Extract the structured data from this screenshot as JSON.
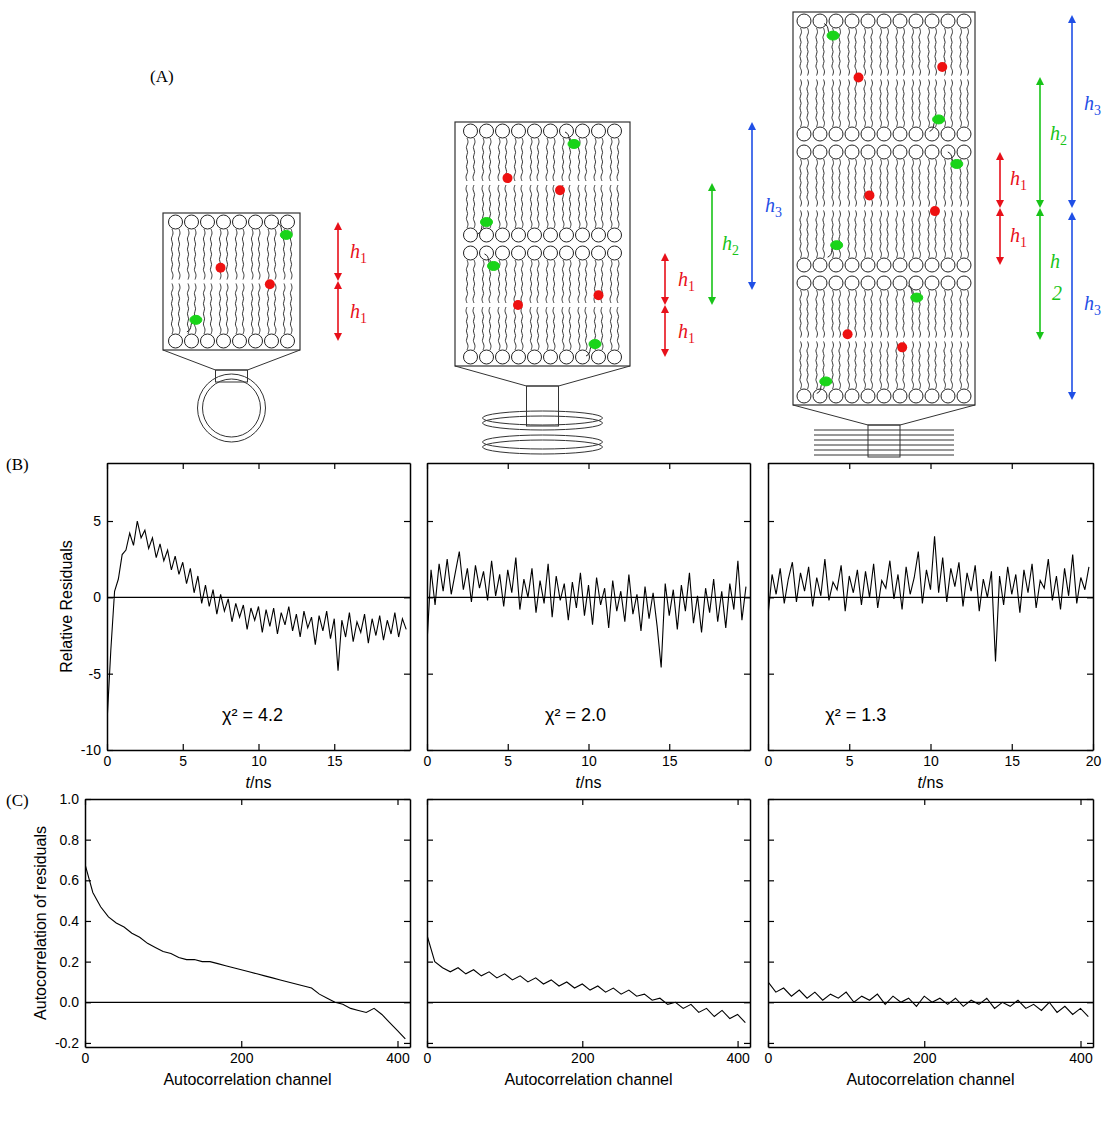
{
  "panel_labels": [
    "(A)",
    "(B)",
    "(C)"
  ],
  "diagram": {
    "stacks": [
      {
        "labels": [
          {
            "text": "h",
            "sub": "1",
            "color": "#e8101a"
          },
          {
            "text": "h",
            "sub": "1",
            "color": "#e8101a"
          }
        ]
      },
      {
        "labels": [
          {
            "text": "h",
            "sub": "1",
            "color": "#e8101a"
          },
          {
            "text": "h",
            "sub": "1",
            "color": "#e8101a"
          },
          {
            "text": "h",
            "sub": "2",
            "color": "#18c418"
          },
          {
            "text": "h",
            "sub": "3",
            "color": "#1f4fe6"
          }
        ]
      },
      {
        "labels": [
          {
            "text": "h",
            "sub": "3",
            "color": "#1f4fe6"
          },
          {
            "text": "h",
            "sub": "2",
            "color": "#18c418"
          },
          {
            "text": "h",
            "sub": "1",
            "color": "#e8101a"
          },
          {
            "text": "h",
            "sub": "1",
            "color": "#e8101a"
          },
          {
            "text": "h",
            "color": "#18c418"
          },
          {
            "text": "2",
            "color": "#18c418"
          },
          {
            "text": "h",
            "sub": "3",
            "color": "#1f4fe6"
          }
        ]
      }
    ]
  },
  "chart_data": [
    {
      "type": "line",
      "ylabel": "Relative Residuals",
      "xlabel": "t/ns",
      "annotation": "χ² = 4.2",
      "color": "#000000",
      "xlim": [
        0,
        20
      ],
      "ylim": [
        -10,
        8.8
      ],
      "xticks": [
        0,
        5,
        10,
        15
      ],
      "yticks": [
        -10,
        -5,
        0,
        5
      ],
      "x": [
        0,
        0.25,
        0.5,
        0.75,
        1,
        1.25,
        1.5,
        1.75,
        2,
        2.25,
        2.5,
        2.75,
        3,
        3.25,
        3.5,
        3.75,
        4,
        4.25,
        4.5,
        4.75,
        5,
        5.25,
        5.5,
        5.75,
        6,
        6.25,
        6.5,
        6.75,
        7,
        7.25,
        7.5,
        7.75,
        8,
        8.25,
        8.5,
        8.75,
        9,
        9.25,
        9.5,
        9.75,
        10,
        10.25,
        10.5,
        10.75,
        11,
        11.25,
        11.5,
        11.75,
        12,
        12.25,
        12.5,
        12.75,
        13,
        13.25,
        13.5,
        13.75,
        14,
        14.25,
        14.5,
        14.75,
        15,
        15.25,
        15.5,
        15.75,
        16,
        16.25,
        16.5,
        16.75,
        17,
        17.25,
        17.5,
        17.75,
        18,
        18.25,
        18.5,
        18.75,
        19,
        19.25,
        19.5,
        19.75
      ],
      "values": [
        -8.2,
        -3.5,
        0.4,
        1.2,
        2.8,
        3.1,
        4.2,
        3.4,
        5.0,
        3.9,
        4.4,
        3.2,
        3.9,
        2.6,
        3.5,
        2.4,
        3.1,
        1.8,
        2.7,
        1.5,
        2.3,
        0.9,
        1.9,
        0.3,
        1.4,
        -0.4,
        0.8,
        -0.6,
        0.5,
        -1.1,
        0.2,
        -0.9,
        -0.1,
        -1.6,
        -0.4,
        -1.3,
        -0.5,
        -2.1,
        -0.7,
        -1.5,
        -0.6,
        -2.3,
        -0.8,
        -1.9,
        -0.7,
        -2.4,
        -1.0,
        -1.8,
        -0.6,
        -2.2,
        -1.1,
        -2.6,
        -0.9,
        -2.0,
        -1.3,
        -3.1,
        -1.2,
        -2.2,
        -0.9,
        -2.7,
        -1.4,
        -4.8,
        -1.5,
        -2.6,
        -1.0,
        -2.9,
        -1.6,
        -2.3,
        -1.1,
        -3.0,
        -1.4,
        -2.5,
        -1.2,
        -2.8,
        -1.5,
        -2.4,
        -1.0,
        -2.6,
        -1.4,
        -2.1
      ]
    },
    {
      "type": "line",
      "xlabel": "t/ns",
      "annotation": "χ² = 2.0",
      "color": "#000000",
      "tick_labels": "x",
      "xlim": [
        0,
        20
      ],
      "ylim": [
        -10,
        8.8
      ],
      "xticks": [
        0,
        5,
        10,
        15
      ],
      "yticks": [
        -10,
        -5,
        0,
        5
      ],
      "x": [
        0,
        0.25,
        0.5,
        0.75,
        1,
        1.25,
        1.5,
        1.75,
        2,
        2.25,
        2.5,
        2.75,
        3,
        3.25,
        3.5,
        3.75,
        4,
        4.25,
        4.5,
        4.75,
        5,
        5.25,
        5.5,
        5.75,
        6,
        6.25,
        6.5,
        6.75,
        7,
        7.25,
        7.5,
        7.75,
        8,
        8.25,
        8.5,
        8.75,
        9,
        9.25,
        9.5,
        9.75,
        10,
        10.25,
        10.5,
        10.75,
        11,
        11.25,
        11.5,
        11.75,
        12,
        12.25,
        12.5,
        12.75,
        13,
        13.25,
        13.5,
        13.75,
        14,
        14.25,
        14.5,
        14.75,
        15,
        15.25,
        15.5,
        15.75,
        16,
        16.25,
        16.5,
        16.75,
        17,
        17.25,
        17.5,
        17.75,
        18,
        18.25,
        18.5,
        18.75,
        19,
        19.25,
        19.5,
        19.75
      ],
      "values": [
        -3.0,
        1.8,
        -0.5,
        2.2,
        0.4,
        2.5,
        0.2,
        1.6,
        3.0,
        0.5,
        1.9,
        -0.3,
        2.1,
        0.6,
        1.7,
        -0.2,
        2.4,
        0.1,
        1.5,
        -0.6,
        1.8,
        0.3,
        2.6,
        -0.8,
        1.2,
        0.0,
        1.9,
        -1.0,
        1.1,
        -0.4,
        2.2,
        -1.3,
        1.4,
        -0.2,
        0.9,
        -1.5,
        1.0,
        -0.7,
        1.6,
        -1.2,
        0.8,
        -1.8,
        1.3,
        -0.5,
        0.6,
        -2.0,
        1.1,
        -0.9,
        0.4,
        -1.6,
        1.5,
        -1.1,
        0.2,
        -2.2,
        0.7,
        -1.4,
        0.3,
        -1.9,
        -4.6,
        0.9,
        -1.2,
        0.5,
        -2.1,
        0.8,
        -0.9,
        1.6,
        -1.7,
        0.1,
        -2.3,
        0.6,
        -1.0,
        1.2,
        -1.6,
        0.4,
        -2.0,
        0.9,
        -0.8,
        2.4,
        -1.5,
        0.7
      ]
    },
    {
      "type": "line",
      "xlabel": "t/ns",
      "annotation": "χ² = 1.3",
      "color": "#000000",
      "tick_labels": "x",
      "xlim": [
        0,
        20
      ],
      "ylim": [
        -10,
        8.8
      ],
      "xticks": [
        0,
        5,
        10,
        15,
        20
      ],
      "yticks": [
        -10,
        -5,
        0,
        5
      ],
      "x": [
        0,
        0.25,
        0.5,
        0.75,
        1,
        1.25,
        1.5,
        1.75,
        2,
        2.25,
        2.5,
        2.75,
        3,
        3.25,
        3.5,
        3.75,
        4,
        4.25,
        4.5,
        4.75,
        5,
        5.25,
        5.5,
        5.75,
        6,
        6.25,
        6.5,
        6.75,
        7,
        7.25,
        7.5,
        7.75,
        8,
        8.25,
        8.5,
        8.75,
        9,
        9.25,
        9.5,
        9.75,
        10,
        10.25,
        10.5,
        10.75,
        11,
        11.25,
        11.5,
        11.75,
        12,
        12.25,
        12.5,
        12.75,
        13,
        13.25,
        13.5,
        13.75,
        14,
        14.25,
        14.5,
        14.75,
        15,
        15.25,
        15.5,
        15.75,
        16,
        16.25,
        16.5,
        16.75,
        17,
        17.25,
        17.5,
        17.75,
        18,
        18.25,
        18.5,
        18.75,
        19,
        19.25,
        19.5,
        19.75
      ],
      "values": [
        -1.2,
        1.5,
        0.2,
        1.9,
        -0.4,
        1.2,
        2.3,
        -0.3,
        1.6,
        0.4,
        2.0,
        -0.6,
        1.3,
        0.1,
        2.5,
        -0.2,
        1.0,
        0.5,
        2.1,
        -0.9,
        1.4,
        0.3,
        1.8,
        -0.5,
        1.7,
        0.0,
        2.2,
        -0.7,
        1.1,
        0.6,
        2.4,
        -0.1,
        1.5,
        -0.8,
        2.0,
        0.2,
        1.3,
        3.0,
        -0.4,
        1.8,
        0.5,
        4.0,
        0.3,
        2.6,
        -0.3,
        1.9,
        0.7,
        2.3,
        -0.6,
        1.6,
        0.4,
        2.1,
        -0.9,
        1.2,
        0.0,
        1.7,
        -4.2,
        1.4,
        -0.5,
        2.0,
        0.2,
        1.5,
        -1.0,
        1.8,
        0.3,
        2.2,
        -0.7,
        1.1,
        0.6,
        2.5,
        -0.2,
        1.4,
        -0.8,
        1.9,
        0.1,
        2.8,
        -0.4,
        1.3,
        0.5,
        2.0
      ]
    },
    {
      "type": "line",
      "ylabel": "Autocorrelation of residuals",
      "xlabel": "Autocorrelation channel",
      "color": "#000000",
      "xlim": [
        0,
        416
      ],
      "ylim": [
        -0.22,
        1.0
      ],
      "xticks": [
        0,
        200,
        400
      ],
      "yticks": [
        -0.2,
        {
          "value": 0,
          "label": "0.0"
        },
        0.2,
        0.4,
        0.6,
        0.8,
        {
          "value": 1,
          "label": "1.0"
        }
      ],
      "x": [
        0,
        10,
        20,
        30,
        40,
        50,
        60,
        70,
        80,
        90,
        100,
        110,
        120,
        130,
        140,
        150,
        160,
        170,
        180,
        190,
        200,
        210,
        220,
        230,
        240,
        250,
        260,
        270,
        280,
        290,
        300,
        310,
        320,
        330,
        340,
        350,
        360,
        370,
        380,
        390,
        400,
        410
      ],
      "values": [
        0.68,
        0.54,
        0.47,
        0.42,
        0.39,
        0.37,
        0.34,
        0.32,
        0.29,
        0.27,
        0.25,
        0.24,
        0.22,
        0.21,
        0.21,
        0.2,
        0.2,
        0.19,
        0.18,
        0.17,
        0.16,
        0.15,
        0.14,
        0.13,
        0.12,
        0.11,
        0.1,
        0.09,
        0.08,
        0.07,
        0.04,
        0.02,
        0.0,
        -0.01,
        -0.03,
        -0.04,
        -0.05,
        -0.03,
        -0.06,
        -0.1,
        -0.14,
        -0.18
      ]
    },
    {
      "type": "line",
      "xlabel": "Autocorrelation channel",
      "color": "#000000",
      "tick_labels": "x",
      "xlim": [
        0,
        416
      ],
      "ylim": [
        -0.22,
        1.0
      ],
      "xticks": [
        0,
        200,
        400
      ],
      "yticks": [
        -0.2,
        0,
        0.2,
        0.4,
        0.6,
        0.8,
        1
      ],
      "x": [
        0,
        10,
        20,
        30,
        40,
        50,
        60,
        70,
        80,
        90,
        100,
        110,
        120,
        130,
        140,
        150,
        160,
        170,
        180,
        190,
        200,
        210,
        220,
        230,
        240,
        250,
        260,
        270,
        280,
        290,
        300,
        310,
        320,
        330,
        340,
        350,
        360,
        370,
        380,
        390,
        400,
        410
      ],
      "values": [
        0.33,
        0.2,
        0.17,
        0.15,
        0.17,
        0.14,
        0.16,
        0.13,
        0.15,
        0.12,
        0.14,
        0.11,
        0.13,
        0.1,
        0.12,
        0.09,
        0.11,
        0.08,
        0.1,
        0.07,
        0.09,
        0.06,
        0.08,
        0.05,
        0.07,
        0.04,
        0.06,
        0.03,
        0.04,
        0.01,
        0.02,
        -0.01,
        0.0,
        -0.03,
        -0.01,
        -0.05,
        -0.03,
        -0.07,
        -0.04,
        -0.08,
        -0.06,
        -0.1
      ]
    },
    {
      "type": "line",
      "xlabel": "Autocorrelation channel",
      "color": "#000000",
      "tick_labels": "x",
      "xlim": [
        0,
        416
      ],
      "ylim": [
        -0.22,
        1.0
      ],
      "xticks": [
        0,
        200,
        400
      ],
      "yticks": [
        -0.2,
        0,
        0.2,
        0.4,
        0.6,
        0.8,
        1
      ],
      "x": [
        0,
        10,
        20,
        30,
        40,
        50,
        60,
        70,
        80,
        90,
        100,
        110,
        120,
        130,
        140,
        150,
        160,
        170,
        180,
        190,
        200,
        210,
        220,
        230,
        240,
        250,
        260,
        270,
        280,
        290,
        300,
        310,
        320,
        330,
        340,
        350,
        360,
        370,
        380,
        390,
        400,
        410
      ],
      "values": [
        0.1,
        0.05,
        0.07,
        0.03,
        0.06,
        0.02,
        0.05,
        0.01,
        0.04,
        0.02,
        0.05,
        0.0,
        0.03,
        0.01,
        0.04,
        -0.01,
        0.03,
        0.0,
        0.02,
        -0.02,
        0.03,
        0.0,
        0.02,
        -0.01,
        0.02,
        -0.02,
        0.01,
        -0.01,
        0.02,
        -0.03,
        0.0,
        -0.02,
        0.01,
        -0.03,
        -0.01,
        -0.04,
        0.0,
        -0.05,
        -0.02,
        -0.06,
        -0.03,
        -0.07
      ]
    }
  ]
}
